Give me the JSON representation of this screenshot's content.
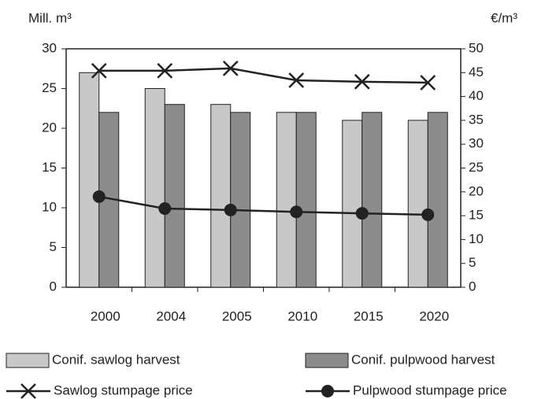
{
  "chart_data": {
    "type": "bar_line",
    "y_label": "Mill. m³",
    "y2_label": "€/m³",
    "categories": [
      "2000",
      "2004",
      "2005",
      "2010",
      "2015",
      "2020"
    ],
    "ylim": [
      0,
      30
    ],
    "yticks": [
      0,
      5,
      10,
      15,
      20,
      25,
      30
    ],
    "y2lim": [
      0,
      50
    ],
    "y2ticks": [
      0,
      5,
      10,
      15,
      20,
      25,
      30,
      35,
      40,
      45,
      50
    ],
    "series": [
      {
        "name": "Conif. sawlog harvest",
        "kind": "bar",
        "color": "#c8c8c8",
        "values": [
          27,
          25,
          23,
          22,
          21,
          21
        ]
      },
      {
        "name": "Conif. pulpwood harvest",
        "kind": "bar",
        "color": "#8c8c8c",
        "values": [
          22,
          23,
          22,
          22,
          22,
          22
        ]
      },
      {
        "name": "Sawlog stumpage price",
        "kind": "line",
        "marker": "x",
        "axis": "y2",
        "color": "#222222",
        "values": [
          45.4,
          45.4,
          45.9,
          43.4,
          43.1,
          42.9
        ]
      },
      {
        "name": "Pulpwood stumpage price",
        "kind": "line",
        "marker": "circle",
        "axis": "y2",
        "color": "#222222",
        "values": [
          19.0,
          16.5,
          16.2,
          15.8,
          15.5,
          15.2
        ]
      }
    ]
  }
}
